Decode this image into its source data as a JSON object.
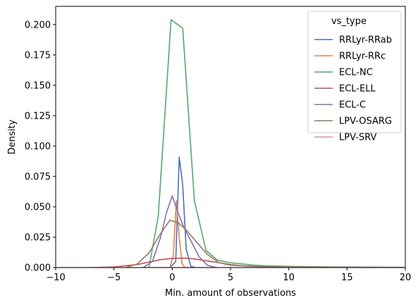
{
  "chart_data": {
    "type": "line",
    "title": "",
    "xlabel": "Min. amount of observations",
    "ylabel": "Density",
    "xlim": [
      -10,
      20
    ],
    "ylim": [
      0,
      0.215
    ],
    "xticks": [
      -10,
      -5,
      0,
      5,
      10,
      15,
      20
    ],
    "xtick_labels": [
      "−10",
      "−5",
      "0",
      "5",
      "10",
      "15",
      "20"
    ],
    "yticks": [
      0.0,
      0.025,
      0.05,
      0.075,
      0.1,
      0.125,
      0.15,
      0.175,
      0.2
    ],
    "ytick_labels": [
      "0.000",
      "0.025",
      "0.050",
      "0.075",
      "0.100",
      "0.125",
      "0.150",
      "0.175",
      "0.200"
    ],
    "grid": false,
    "legend": {
      "title": "vs_type",
      "placement": "top-right"
    },
    "series": [
      {
        "name": "RRLyr-RRab",
        "color": "#4c72b0",
        "x": [
          -0.2,
          0.3,
          0.6,
          0.9,
          1.2,
          1.6,
          2.0
        ],
        "y": [
          0.0,
          0.005,
          0.091,
          0.068,
          0.015,
          0.001,
          0.0
        ]
      },
      {
        "name": "RRLyr-RRc",
        "color": "#dd8452",
        "x": [
          -0.2,
          0.1,
          0.35,
          0.6,
          0.85,
          1.1,
          1.4
        ],
        "y": [
          0.0,
          0.01,
          0.055,
          0.025,
          0.003,
          0.0,
          0.0
        ]
      },
      {
        "name": "ECL-NC",
        "color": "#55a868",
        "x": [
          -2.0,
          -1.2,
          -0.1,
          0.9,
          1.9,
          2.9,
          3.9,
          5.0,
          6.0,
          7.0,
          8.0,
          10.0,
          12.0,
          14.0,
          16.0,
          18.0,
          20.0
        ],
        "y": [
          0.0,
          0.042,
          0.204,
          0.197,
          0.055,
          0.014,
          0.006,
          0.004,
          0.003,
          0.002,
          0.0015,
          0.001,
          0.0007,
          0.0005,
          0.0004,
          0.0003,
          0.0002
        ]
      },
      {
        "name": "ECL-ELL",
        "color": "#c44e52",
        "x": [
          -7.0,
          -5.0,
          -3.0,
          -2.0,
          -1.0,
          0.0,
          1.0,
          2.0,
          3.0,
          4.0,
          5.0,
          6.0,
          7.0,
          8.0,
          9.0,
          11.0,
          14.0,
          17.0,
          20.0
        ],
        "y": [
          0.0,
          0.0005,
          0.0025,
          0.0045,
          0.0065,
          0.0075,
          0.0078,
          0.007,
          0.0055,
          0.004,
          0.0025,
          0.0015,
          0.001,
          0.0006,
          0.0004,
          0.0002,
          0.0001,
          5e-05,
          0.0
        ]
      },
      {
        "name": "ECL-C",
        "color": "#8172b3",
        "x": [
          -2.5,
          -1.7,
          -1.0,
          -0.5,
          0.0,
          0.5,
          1.0,
          1.6,
          2.3,
          3.0,
          3.8
        ],
        "y": [
          0.0,
          0.005,
          0.025,
          0.045,
          0.059,
          0.045,
          0.033,
          0.022,
          0.009,
          0.002,
          0.0
        ]
      },
      {
        "name": "LPV-OSARG",
        "color": "#937860",
        "x": [
          -4.0,
          -3.0,
          -2.0,
          -1.0,
          -0.2,
          0.5,
          1.2,
          2.0,
          3.0,
          4.0,
          5.0,
          6.0,
          7.0,
          8.0,
          10.0
        ],
        "y": [
          0.0,
          0.003,
          0.012,
          0.028,
          0.039,
          0.037,
          0.031,
          0.022,
          0.011,
          0.004,
          0.002,
          0.0015,
          0.001,
          0.0005,
          0.0
        ]
      },
      {
        "name": "LPV-SRV",
        "color": "#da8bc3",
        "x": [
          -10.0,
          -5.0,
          0.0,
          5.0,
          10.0,
          15.0,
          20.0
        ],
        "y": [
          0.0,
          0.0,
          0.0,
          0.0,
          0.0,
          0.0,
          0.0
        ]
      }
    ]
  }
}
